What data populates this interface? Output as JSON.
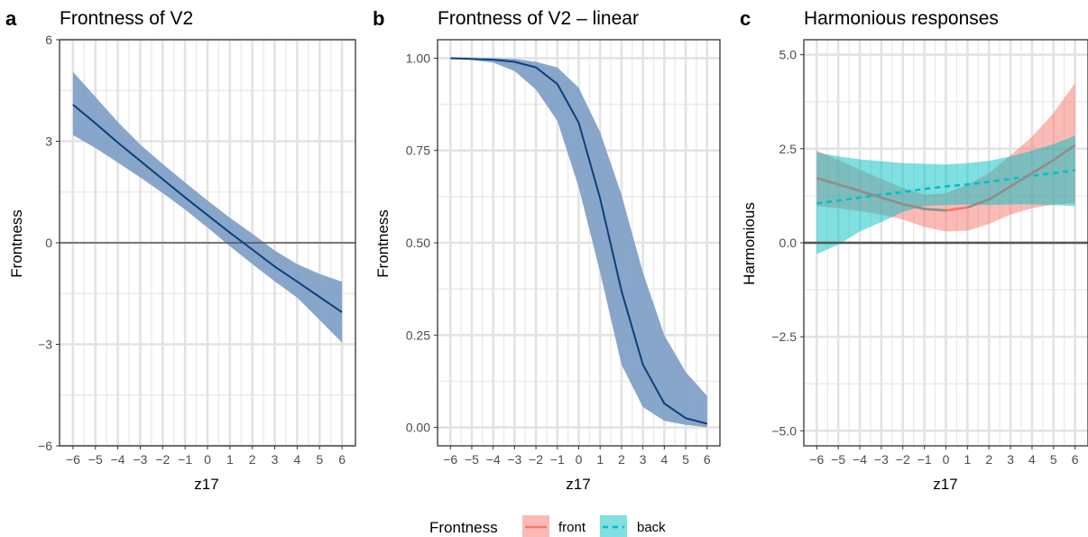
{
  "legend": {
    "title": "Frontness",
    "items": [
      {
        "label": "front",
        "color": "#f8766d",
        "fill": "#f8766d",
        "dash": false
      },
      {
        "label": "back",
        "color": "#00bfc4",
        "fill": "#00bfc4",
        "dash": true
      }
    ]
  },
  "chart_data": [
    {
      "panel": "a",
      "type": "line",
      "title": "Frontness of V2",
      "xlabel": "z17",
      "ylabel": "Frontness",
      "xlim": [
        -6.6,
        6.6
      ],
      "ylim": [
        -6.0,
        6.0
      ],
      "x_ticks": [
        -6,
        -5,
        -4,
        -3,
        -2,
        -1,
        0,
        1,
        2,
        3,
        4,
        5,
        6
      ],
      "x_tick_labels": [
        "−6",
        "−5",
        "−4",
        "−3",
        "−2",
        "−1",
        "0",
        "1",
        "2",
        "3",
        "4",
        "5",
        "6"
      ],
      "y_ticks": [
        -6,
        -3,
        0,
        3,
        6
      ],
      "y_tick_labels": [
        "−6",
        "−3",
        "0",
        "3",
        "6"
      ],
      "hline": 0,
      "line_color": "#0d3f7a",
      "ribbon_color": "#7b9cc4",
      "series": [
        {
          "x": [
            -6,
            -5,
            -4,
            -3,
            -2,
            -1,
            0,
            1,
            2,
            3,
            4,
            5,
            6
          ],
          "y": [
            4.08,
            3.53,
            2.96,
            2.42,
            1.88,
            1.34,
            0.82,
            0.3,
            -0.2,
            -0.7,
            -1.15,
            -1.6,
            -2.05
          ],
          "lower": [
            3.18,
            2.8,
            2.37,
            1.93,
            1.47,
            0.98,
            0.45,
            -0.1,
            -0.63,
            -1.14,
            -1.62,
            -2.28,
            -2.95
          ],
          "upper": [
            5.05,
            4.31,
            3.57,
            2.9,
            2.33,
            1.78,
            1.25,
            0.74,
            0.27,
            -0.23,
            -0.63,
            -0.92,
            -1.15
          ]
        }
      ]
    },
    {
      "panel": "b",
      "type": "line",
      "title": "Frontness of V2 – linear",
      "xlabel": "z17",
      "ylabel": "Frontness",
      "xlim": [
        -6.6,
        6.6
      ],
      "ylim": [
        -0.05,
        1.05
      ],
      "x_ticks": [
        -6,
        -5,
        -4,
        -3,
        -2,
        -1,
        0,
        1,
        2,
        3,
        4,
        5,
        6
      ],
      "x_tick_labels": [
        "−6",
        "−5",
        "−4",
        "−3",
        "−2",
        "−1",
        "0",
        "1",
        "2",
        "3",
        "4",
        "5",
        "6"
      ],
      "y_ticks": [
        0,
        0.25,
        0.5,
        0.75,
        1.0
      ],
      "y_tick_labels": [
        "0.00",
        "0.25",
        "0.50",
        "0.75",
        "1.00"
      ],
      "line_color": "#0d3f7a",
      "ribbon_color": "#7b9cc4",
      "series": [
        {
          "x": [
            -6,
            -5,
            -4,
            -3,
            -2,
            -1,
            0,
            1,
            2,
            3,
            4,
            5,
            6
          ],
          "y": [
            1.0,
            0.998,
            0.996,
            0.99,
            0.975,
            0.93,
            0.825,
            0.62,
            0.37,
            0.17,
            0.065,
            0.025,
            0.01
          ],
          "lower": [
            1.0,
            0.995,
            0.988,
            0.965,
            0.915,
            0.83,
            0.65,
            0.42,
            0.17,
            0.055,
            0.018,
            0.007,
            0.0
          ],
          "upper": [
            1.0,
            1.0,
            1.0,
            0.998,
            0.99,
            0.975,
            0.92,
            0.8,
            0.63,
            0.42,
            0.25,
            0.15,
            0.085
          ]
        }
      ]
    },
    {
      "panel": "c",
      "type": "line",
      "title": "Harmonious responses",
      "xlabel": "z17",
      "ylabel": "Harmonious",
      "xlim": [
        -6.6,
        6.6
      ],
      "ylim": [
        -5.4,
        5.4
      ],
      "x_ticks": [
        -6,
        -5,
        -4,
        -3,
        -2,
        -1,
        0,
        1,
        2,
        3,
        4,
        5,
        6
      ],
      "x_tick_labels": [
        "−6",
        "−5",
        "−4",
        "−3",
        "−2",
        "−1",
        "0",
        "1",
        "2",
        "3",
        "4",
        "5",
        "6"
      ],
      "y_ticks": [
        -5,
        -2.5,
        0,
        2.5,
        5
      ],
      "y_tick_labels": [
        "−5.0",
        "−2.5",
        "0.0",
        "2.5",
        "5.0"
      ],
      "hline": 0,
      "series": [
        {
          "name": "front",
          "x": [
            -6,
            -5,
            -4,
            -3,
            -2,
            -1,
            0,
            1,
            2,
            3,
            4,
            5,
            6
          ],
          "y": [
            1.72,
            1.55,
            1.38,
            1.2,
            1.03,
            0.9,
            0.86,
            0.94,
            1.15,
            1.5,
            1.85,
            2.2,
            2.6
          ],
          "lower": [
            0.98,
            0.92,
            0.84,
            0.75,
            0.62,
            0.42,
            0.3,
            0.32,
            0.5,
            0.75,
            0.92,
            1.02,
            1.05
          ],
          "upper": [
            2.45,
            2.2,
            1.95,
            1.7,
            1.46,
            1.28,
            1.32,
            1.54,
            1.85,
            2.32,
            2.82,
            3.45,
            4.25
          ]
        },
        {
          "name": "back",
          "x": [
            -6,
            -5,
            -4,
            -3,
            -2,
            -1,
            0,
            1,
            2,
            3,
            4,
            5,
            6
          ],
          "y": [
            1.05,
            1.12,
            1.2,
            1.28,
            1.35,
            1.43,
            1.5,
            1.55,
            1.62,
            1.7,
            1.78,
            1.85,
            1.93
          ],
          "lower": [
            -0.3,
            -0.05,
            0.3,
            0.55,
            0.82,
            0.98,
            1.0,
            1.02,
            1.0,
            1.02,
            1.02,
            1.0,
            0.98
          ],
          "upper": [
            2.4,
            2.3,
            2.22,
            2.17,
            2.12,
            2.1,
            2.08,
            2.12,
            2.18,
            2.3,
            2.45,
            2.62,
            2.85
          ]
        }
      ]
    }
  ]
}
